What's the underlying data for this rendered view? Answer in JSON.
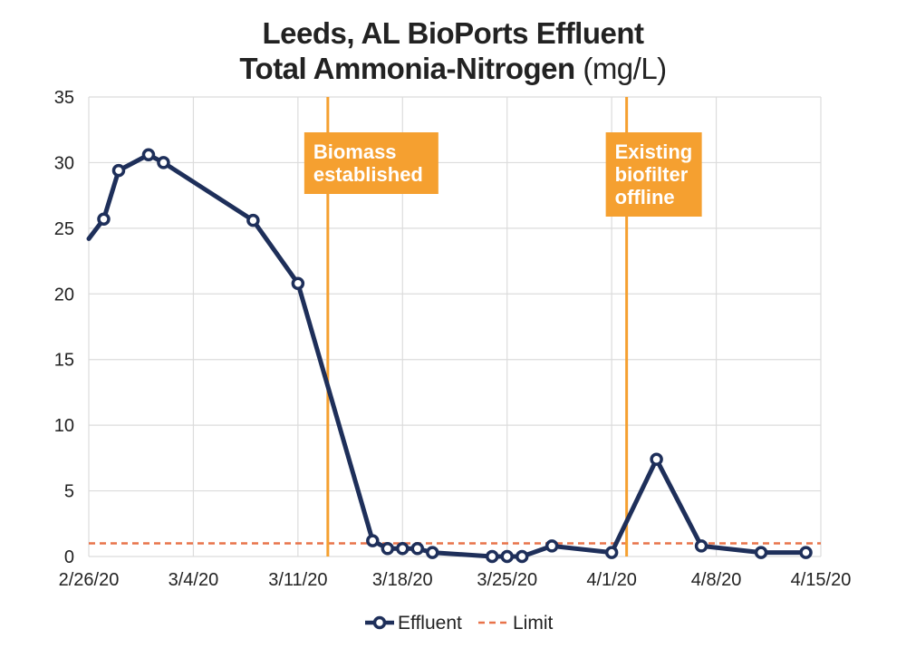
{
  "chart_data": {
    "type": "line",
    "title_line1": "Leeds, AL BioPorts Effluent",
    "title_line2_bold": "Total Ammonia-Nitrogen",
    "title_line2_unit": "(mg/L)",
    "x_tick_labels": [
      "2/26/20",
      "3/4/20",
      "3/11/20",
      "3/18/20",
      "3/25/20",
      "4/1/20",
      "4/8/20",
      "4/15/20"
    ],
    "x_tick_days": [
      0,
      7,
      14,
      21,
      28,
      35,
      42,
      49
    ],
    "xlim_days": [
      0,
      49
    ],
    "ylim": [
      0,
      35
    ],
    "y_ticks": [
      0,
      5,
      10,
      15,
      20,
      25,
      30,
      35
    ],
    "grid": true,
    "series": [
      {
        "name": "Effluent",
        "color": "#1e2f5a",
        "marker": "open-circle",
        "x": [
          "2/26/20",
          "2/27/20",
          "2/28/20",
          "3/1/20",
          "3/2/20",
          "3/8/20",
          "3/11/20",
          "3/16/20",
          "3/17/20",
          "3/18/20",
          "3/19/20",
          "3/20/20",
          "3/24/20",
          "3/25/20",
          "3/26/20",
          "3/28/20",
          "4/1/20",
          "4/4/20",
          "4/7/20",
          "4/11/20",
          "4/14/20"
        ],
        "y": [
          24.2,
          25.7,
          29.4,
          30.6,
          30.0,
          25.6,
          20.8,
          1.2,
          0.6,
          0.6,
          0.6,
          0.3,
          0.0,
          0.0,
          0.0,
          0.8,
          0.3,
          7.4,
          0.8,
          0.3,
          0.3
        ],
        "marker_shown": [
          false,
          true,
          true,
          true,
          true,
          true,
          true,
          true,
          true,
          true,
          true,
          true,
          true,
          true,
          true,
          true,
          true,
          true,
          true,
          true,
          true
        ]
      },
      {
        "name": "Limit",
        "color": "#e8734a",
        "style": "dashed",
        "y_constant": 1.0
      }
    ],
    "annotations": [
      {
        "lines": [
          "Biomass",
          "established"
        ],
        "x": "3/13/20",
        "color": "#f5a030"
      },
      {
        "lines": [
          "Existing",
          "biofilter",
          "offline"
        ],
        "x": "4/2/20",
        "color": "#f5a030"
      }
    ],
    "legend_position": "bottom-center"
  }
}
